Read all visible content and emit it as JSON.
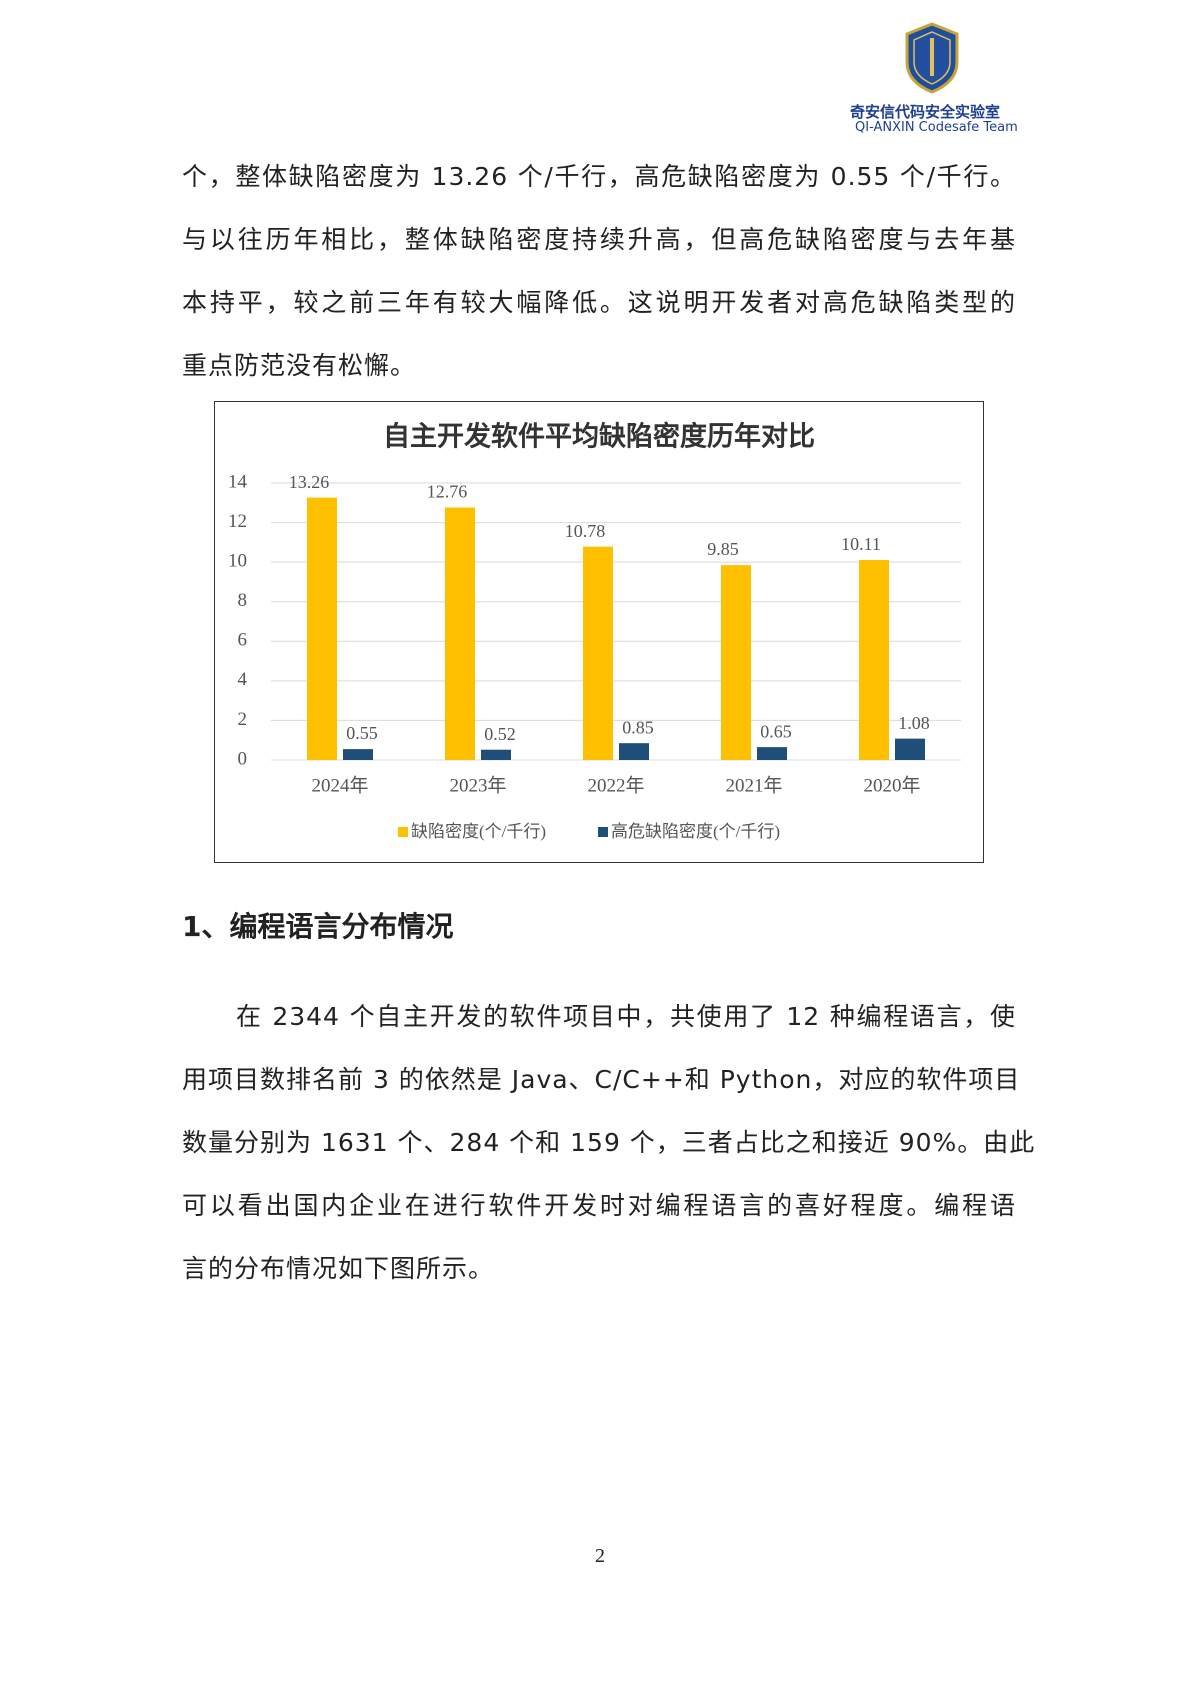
{
  "header": {
    "org_cn": "奇安信代码安全实验室",
    "org_en": "QI-ANXIN Codesafe Team"
  },
  "paragraphs": [
    {
      "lines": [
        "个，整体缺陷密度为 13.26 个/千行，高危缺陷密度为 0.55 个/千行。",
        "与以往历年相比，整体缺陷密度持续升高，但高危缺陷密度与去年基",
        "本持平，较之前三年有较大幅降低。这说明开发者对高危缺陷类型的",
        "重点防范没有松懈。"
      ]
    },
    {
      "lines": [
        "在 2344 个自主开发的软件项目中，共使用了 12 种编程语言，使",
        "用项目数排名前 3 的依然是 Java、C/C++和 Python，对应的软件项目",
        "数量分别为 1631 个、284 个和 159 个，三者占比之和接近 90%。由此",
        "可以看出国内企业在进行软件开发时对编程语言的喜好程度。编程语",
        "言的分布情况如下图所示。"
      ]
    }
  ],
  "chart_data": {
    "type": "bar",
    "title": "自主开发软件平均缺陷密度历年对比",
    "categories": [
      "2024年",
      "2023年",
      "2022年",
      "2021年",
      "2020年"
    ],
    "series": [
      {
        "name": "缺陷密度(个/千行)",
        "color": "#ffc000",
        "values": [
          13.26,
          12.76,
          10.78,
          9.85,
          10.11
        ]
      },
      {
        "name": "高危缺陷密度(个/千行)",
        "color": "#1f4e79",
        "values": [
          0.55,
          0.52,
          0.85,
          0.65,
          1.08
        ]
      }
    ],
    "ylim": [
      0,
      14
    ],
    "yticks": [
      0,
      2,
      4,
      6,
      8,
      10,
      12,
      14
    ],
    "grid": true,
    "legend": "bottom"
  },
  "section": {
    "heading": "1、编程语言分布情况"
  },
  "footer": {
    "page_number": "2"
  }
}
